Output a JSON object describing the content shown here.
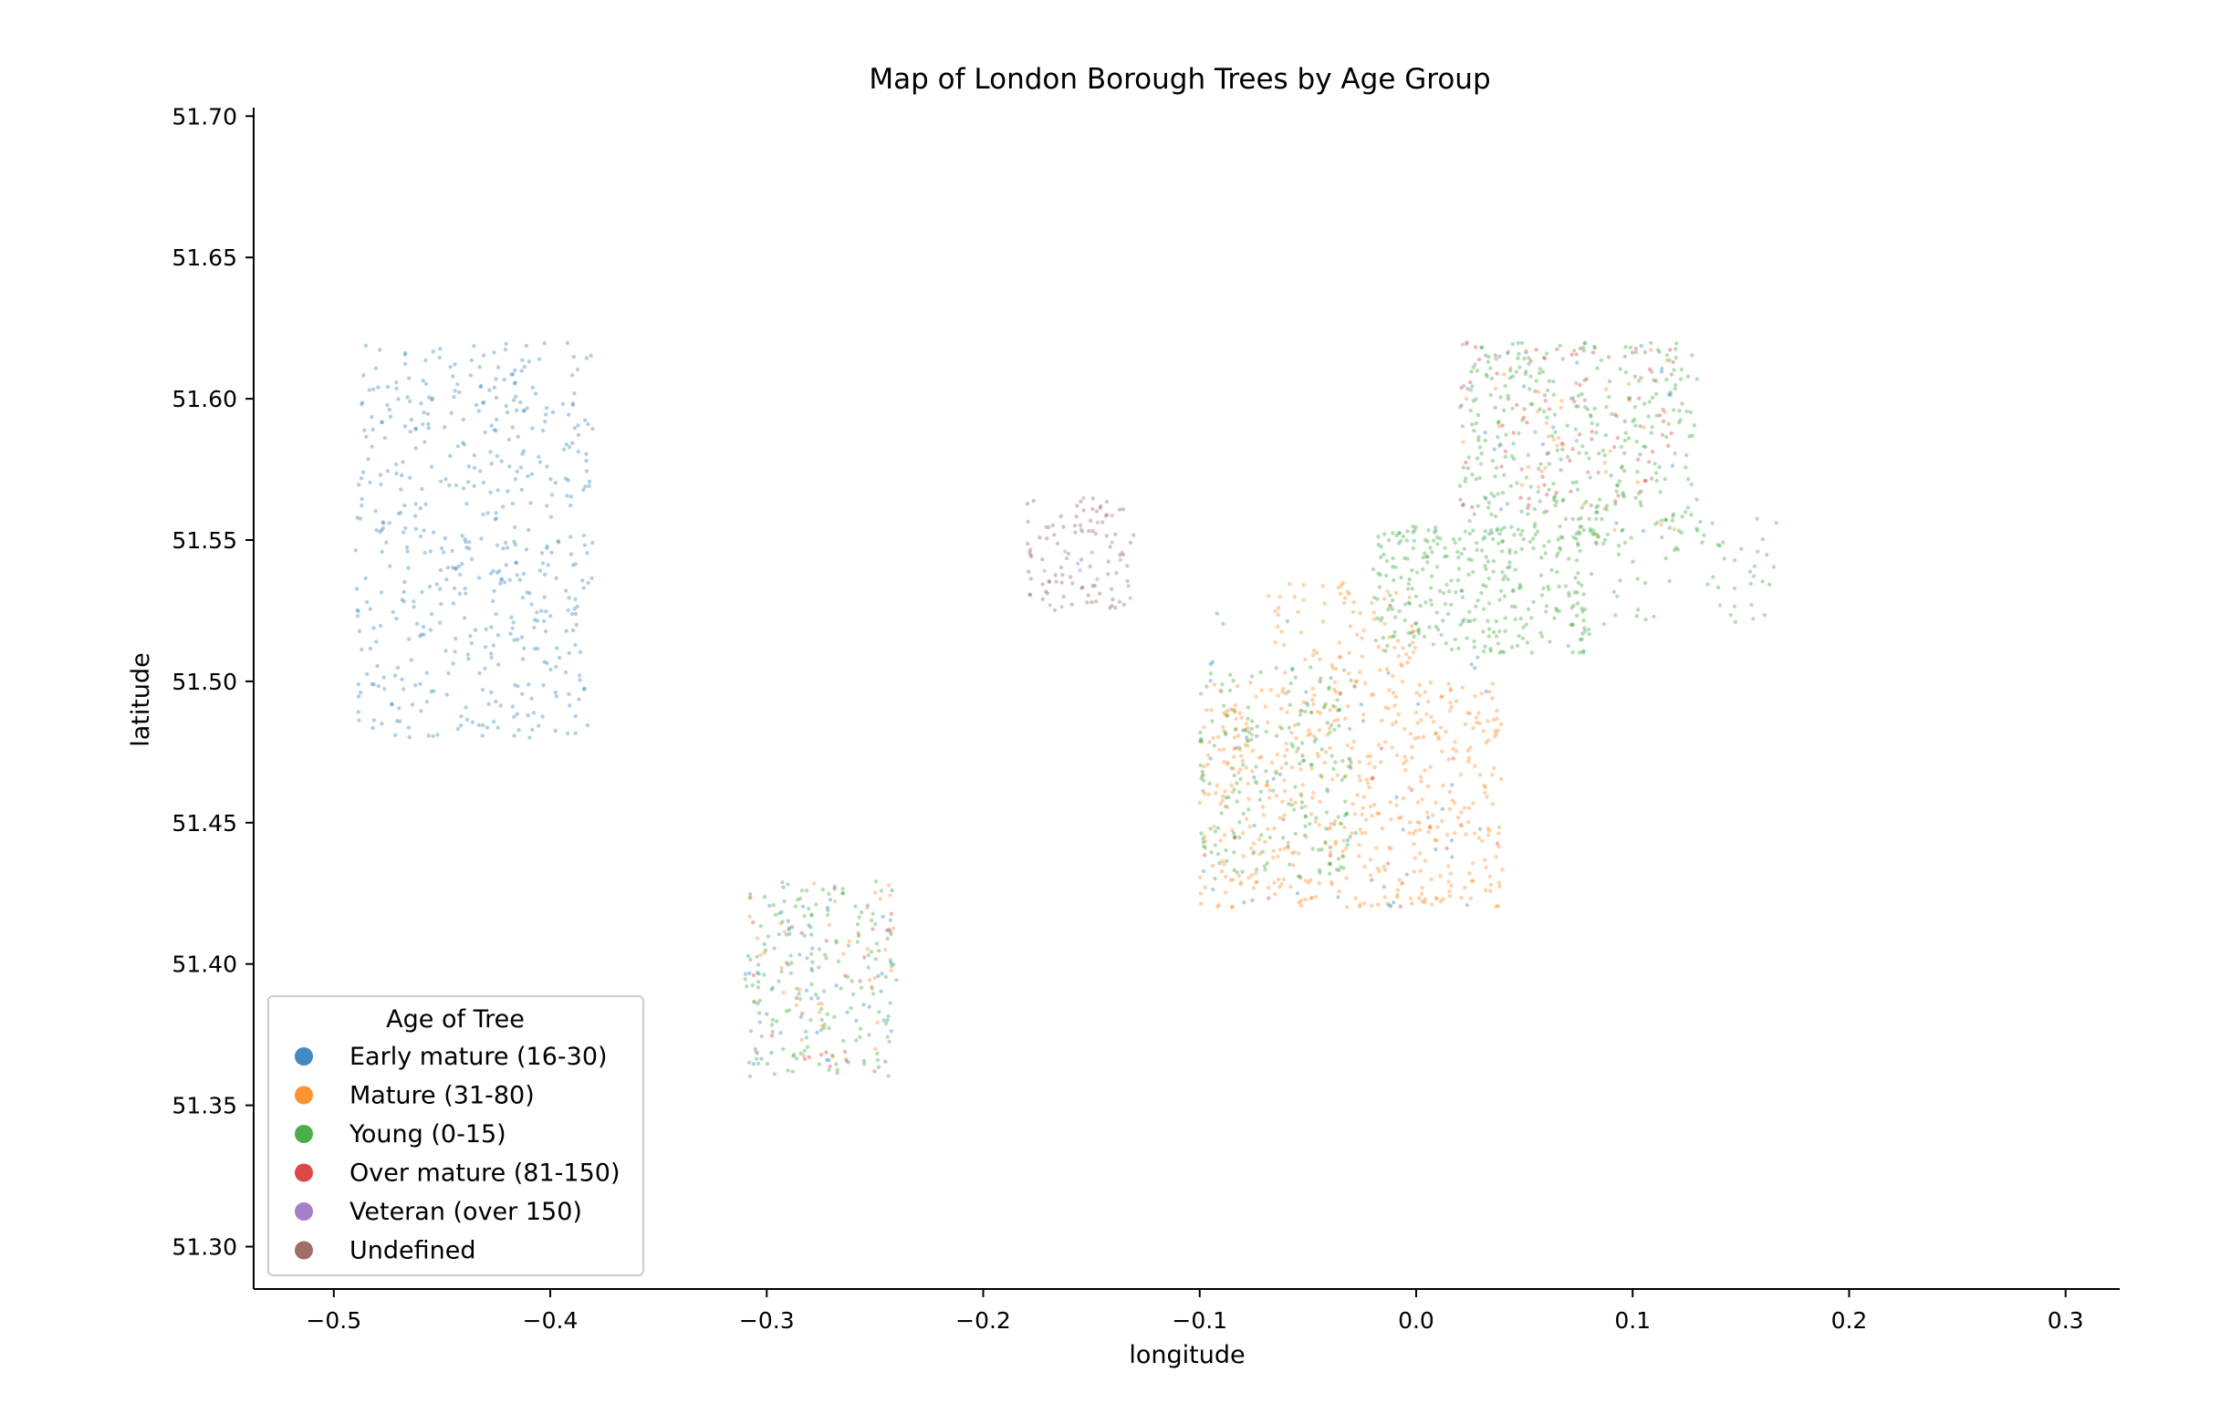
{
  "chart_data": {
    "type": "scatter",
    "title": "Map of London Borough Trees by Age Group",
    "xlabel": "longitude",
    "ylabel": "latitude",
    "xlim": [
      -0.537,
      0.325
    ],
    "ylim": [
      51.285,
      51.703
    ],
    "xticks": [
      -0.5,
      -0.4,
      -0.3,
      -0.2,
      -0.1,
      0.0,
      0.1,
      0.2,
      0.3
    ],
    "xtick_labels": [
      "−0.5",
      "−0.4",
      "−0.3",
      "−0.2",
      "−0.1",
      "0.0",
      "0.1",
      "0.2",
      "0.3"
    ],
    "yticks": [
      51.3,
      51.35,
      51.4,
      51.45,
      51.5,
      51.55,
      51.6,
      51.65,
      51.7
    ],
    "ytick_labels": [
      "51.30",
      "51.35",
      "51.40",
      "51.45",
      "51.50",
      "51.55",
      "51.60",
      "51.65",
      "51.70"
    ],
    "grid": false,
    "legend": {
      "title": "Age of Tree",
      "position": "lower-left",
      "entries": [
        {
          "name": "Early mature (16-30)",
          "color": "#1f77b4"
        },
        {
          "name": "Mature (31-80)",
          "color": "#ff7f0e"
        },
        {
          "name": "Young (0-15)",
          "color": "#2ca02c"
        },
        {
          "name": "Over mature (81-150)",
          "color": "#d62728"
        },
        {
          "name": "Veteran (over 150)",
          "color": "#9467bd"
        },
        {
          "name": "Undefined",
          "color": "#8c564b"
        }
      ]
    },
    "series": [
      {
        "name": "Early mature (16-30)",
        "color": "#1f77b4",
        "clusters": [
          {
            "lon": [
              -0.49,
              -0.38
            ],
            "lat": [
              51.48,
              51.62
            ],
            "weight": 520
          },
          {
            "lon": [
              -0.31,
              -0.24
            ],
            "lat": [
              51.36,
              51.43
            ],
            "weight": 60
          },
          {
            "lon": [
              -0.1,
              0.04
            ],
            "lat": [
              51.42,
              51.53
            ],
            "weight": 50
          },
          {
            "lon": [
              0.02,
              0.12
            ],
            "lat": [
              51.55,
              51.62
            ],
            "weight": 30
          }
        ]
      },
      {
        "name": "Mature (31-80)",
        "color": "#ff7f0e",
        "clusters": [
          {
            "lon": [
              -0.1,
              0.04
            ],
            "lat": [
              51.42,
              51.5
            ],
            "weight": 520
          },
          {
            "lon": [
              -0.07,
              0.0
            ],
            "lat": [
              51.5,
              51.535
            ],
            "weight": 80
          },
          {
            "lon": [
              -0.31,
              -0.24
            ],
            "lat": [
              51.36,
              51.43
            ],
            "weight": 40
          },
          {
            "lon": [
              0.02,
              0.12
            ],
            "lat": [
              51.55,
              51.62
            ],
            "weight": 40
          }
        ]
      },
      {
        "name": "Young (0-15)",
        "color": "#2ca02c",
        "clusters": [
          {
            "lon": [
              -0.02,
              0.08
            ],
            "lat": [
              51.51,
              51.555
            ],
            "weight": 300
          },
          {
            "lon": [
              0.02,
              0.13
            ],
            "lat": [
              51.55,
              51.62
            ],
            "weight": 300
          },
          {
            "lon": [
              -0.1,
              -0.03
            ],
            "lat": [
              51.43,
              51.505
            ],
            "weight": 200
          },
          {
            "lon": [
              -0.31,
              -0.24
            ],
            "lat": [
              51.36,
              51.43
            ],
            "weight": 160
          },
          {
            "lon": [
              0.07,
              0.17
            ],
            "lat": [
              51.52,
              51.56
            ],
            "weight": 80
          }
        ]
      },
      {
        "name": "Over mature (81-150)",
        "color": "#d62728",
        "clusters": [
          {
            "lon": [
              0.02,
              0.12
            ],
            "lat": [
              51.56,
              51.62
            ],
            "weight": 70
          },
          {
            "lon": [
              -0.31,
              -0.24
            ],
            "lat": [
              51.36,
              51.43
            ],
            "weight": 25
          },
          {
            "lon": [
              -0.1,
              0.04
            ],
            "lat": [
              51.42,
              51.5
            ],
            "weight": 20
          }
        ]
      },
      {
        "name": "Veteran (over 150)",
        "color": "#9467bd",
        "clusters": [
          {
            "lon": [
              -0.18,
              -0.13
            ],
            "lat": [
              51.525,
              51.565
            ],
            "weight": 20
          },
          {
            "lon": [
              0.02,
              0.08
            ],
            "lat": [
              51.57,
              51.62
            ],
            "weight": 10
          }
        ]
      },
      {
        "name": "Undefined",
        "color": "#8c564b",
        "clusters": [
          {
            "lon": [
              -0.18,
              -0.13
            ],
            "lat": [
              51.525,
              51.565
            ],
            "weight": 90
          },
          {
            "lon": [
              0.02,
              0.12
            ],
            "lat": [
              51.56,
              51.62
            ],
            "weight": 30
          }
        ]
      }
    ]
  }
}
